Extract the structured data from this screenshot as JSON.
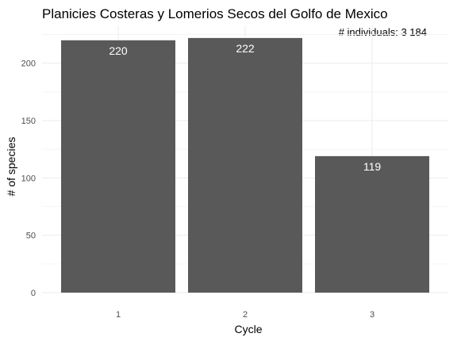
{
  "chart_data": {
    "type": "bar",
    "title": "Planicies Costeras y Lomerios Secos del Golfo de Mexico",
    "annotation": "# individuals: 3 184",
    "xlabel": "Cycle",
    "ylabel": "# of species",
    "categories": [
      "1",
      "2",
      "3"
    ],
    "values": [
      220,
      222,
      119
    ],
    "data_labels": [
      "220",
      "222",
      "119"
    ],
    "y_ticks": [
      0,
      50,
      100,
      150,
      200
    ],
    "y_tick_labels": [
      "0",
      "50",
      "100",
      "150",
      "200"
    ],
    "ylim": [
      0,
      233
    ],
    "grid": true,
    "bar_color": "#595959",
    "label_color": "#ffffff"
  }
}
